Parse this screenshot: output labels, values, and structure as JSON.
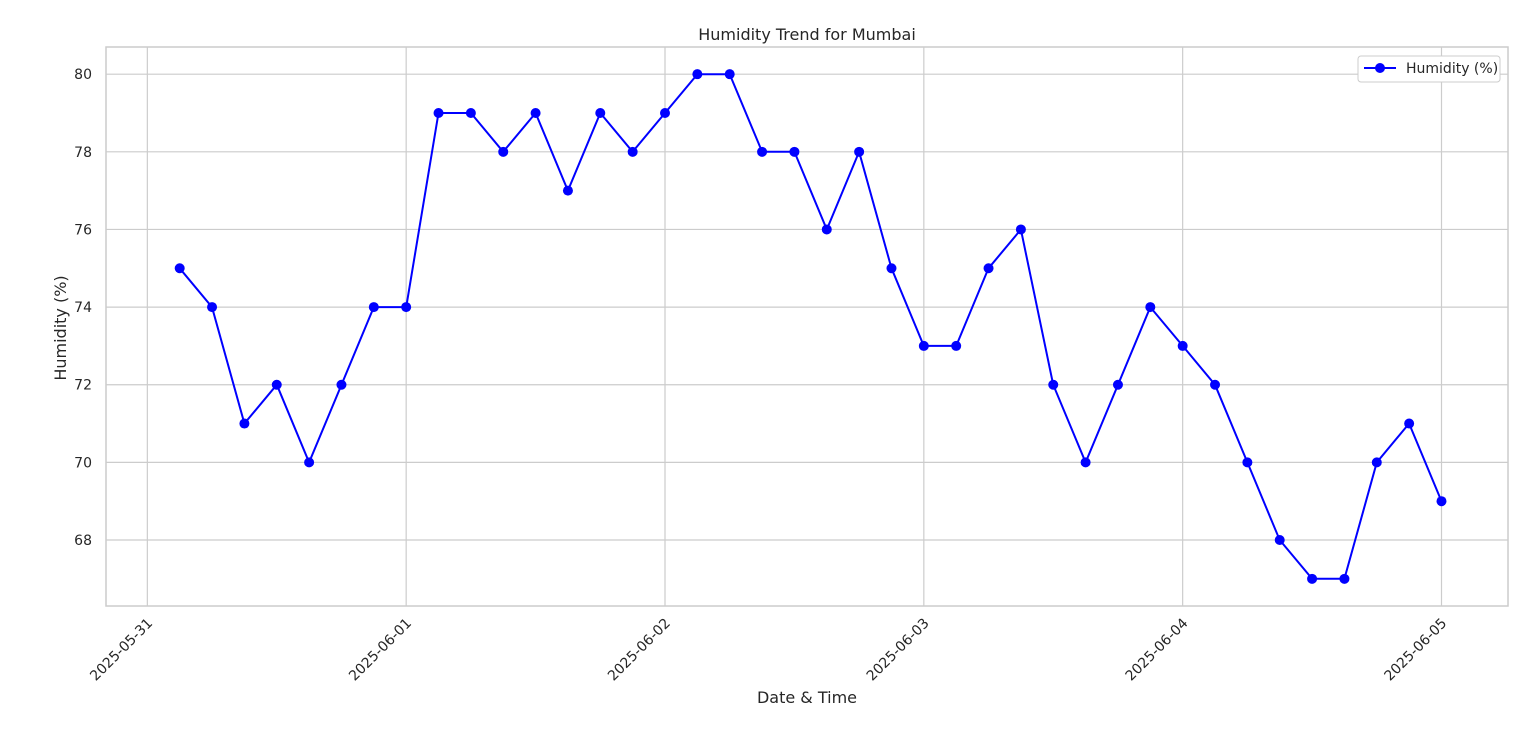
{
  "chart_data": {
    "type": "line",
    "title": "Humidity Trend for Mumbai",
    "xlabel": "Date & Time",
    "ylabel": "Humidity (%)",
    "x_ticks": [
      "2025-05-31",
      "2025-06-01",
      "2025-06-02",
      "2025-06-03",
      "2025-06-04",
      "2025-06-05"
    ],
    "y_ticks": [
      68,
      70,
      72,
      74,
      76,
      78,
      80
    ],
    "xlim": [
      "2025-05-30 20:10",
      "2025-06-05 06:10"
    ],
    "ylim": [
      66.3,
      80.7
    ],
    "grid": true,
    "legend_position": "top-right",
    "series": [
      {
        "name": "Humidity (%)",
        "color": "#0000ff",
        "marker": "circle",
        "x": [
          "2025-05-31 03:00",
          "2025-05-31 06:00",
          "2025-05-31 09:00",
          "2025-05-31 12:00",
          "2025-05-31 15:00",
          "2025-05-31 18:00",
          "2025-05-31 21:00",
          "2025-06-01 00:00",
          "2025-06-01 03:00",
          "2025-06-01 06:00",
          "2025-06-01 09:00",
          "2025-06-01 12:00",
          "2025-06-01 15:00",
          "2025-06-01 18:00",
          "2025-06-01 21:00",
          "2025-06-02 00:00",
          "2025-06-02 03:00",
          "2025-06-02 06:00",
          "2025-06-02 09:00",
          "2025-06-02 12:00",
          "2025-06-02 15:00",
          "2025-06-02 18:00",
          "2025-06-02 21:00",
          "2025-06-03 00:00",
          "2025-06-03 03:00",
          "2025-06-03 06:00",
          "2025-06-03 09:00",
          "2025-06-03 12:00",
          "2025-06-03 15:00",
          "2025-06-03 18:00",
          "2025-06-03 21:00",
          "2025-06-04 00:00",
          "2025-06-04 03:00",
          "2025-06-04 06:00",
          "2025-06-04 09:00",
          "2025-06-04 12:00",
          "2025-06-04 15:00",
          "2025-06-04 18:00",
          "2025-06-04 21:00",
          "2025-06-05 00:00"
        ],
        "values": [
          75,
          74,
          71,
          72,
          70,
          72,
          74,
          74,
          79,
          79,
          78,
          79,
          77,
          79,
          78,
          79,
          80,
          80,
          78,
          78,
          76,
          78,
          75,
          73,
          73,
          75,
          76,
          72,
          70,
          72,
          74,
          73,
          72,
          70,
          68,
          67,
          67,
          70,
          71,
          69
        ]
      }
    ]
  }
}
